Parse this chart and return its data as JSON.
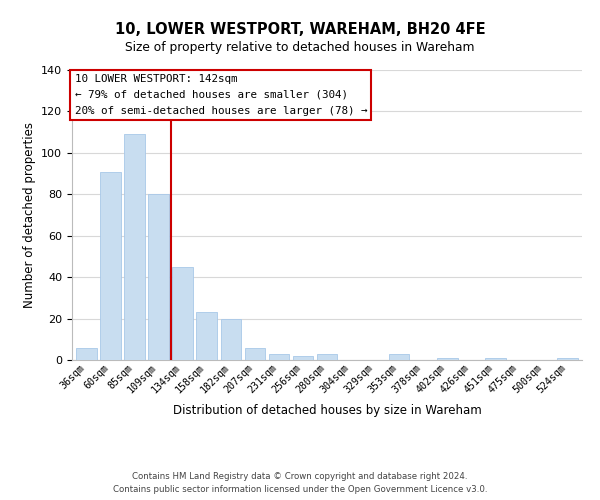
{
  "title": "10, LOWER WESTPORT, WAREHAM, BH20 4FE",
  "subtitle": "Size of property relative to detached houses in Wareham",
  "xlabel": "Distribution of detached houses by size in Wareham",
  "ylabel": "Number of detached properties",
  "bar_color": "#c8ddf0",
  "bar_edge_color": "#a8c8e8",
  "categories": [
    "36sqm",
    "60sqm",
    "85sqm",
    "109sqm",
    "134sqm",
    "158sqm",
    "182sqm",
    "207sqm",
    "231sqm",
    "256sqm",
    "280sqm",
    "304sqm",
    "329sqm",
    "353sqm",
    "378sqm",
    "402sqm",
    "426sqm",
    "451sqm",
    "475sqm",
    "500sqm",
    "524sqm"
  ],
  "values": [
    6,
    91,
    109,
    80,
    45,
    23,
    20,
    6,
    3,
    2,
    3,
    0,
    0,
    3,
    0,
    1,
    0,
    1,
    0,
    0,
    1
  ],
  "ylim": [
    0,
    140
  ],
  "yticks": [
    0,
    20,
    40,
    60,
    80,
    100,
    120,
    140
  ],
  "property_line_color": "#cc0000",
  "property_line_bin_index": 4,
  "annotation_title": "10 LOWER WESTPORT: 142sqm",
  "annotation_line1": "← 79% of detached houses are smaller (304)",
  "annotation_line2": "20% of semi-detached houses are larger (78) →",
  "annotation_box_color": "#ffffff",
  "annotation_box_edge": "#cc0000",
  "footer1": "Contains HM Land Registry data © Crown copyright and database right 2024.",
  "footer2": "Contains public sector information licensed under the Open Government Licence v3.0.",
  "background_color": "#ffffff",
  "grid_color": "#d8d8d8"
}
